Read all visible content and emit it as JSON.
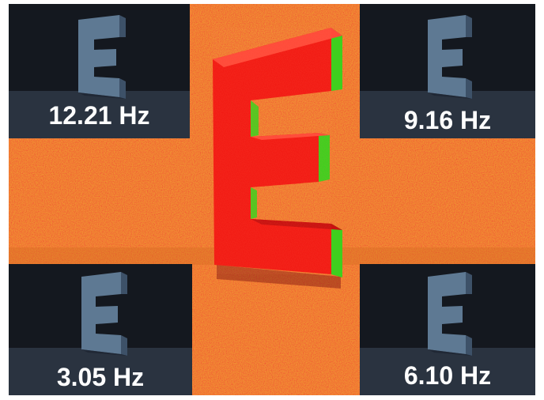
{
  "panels": {
    "top_left": {
      "frequency": "12.21 Hz"
    },
    "top_right": {
      "frequency": "9.16 Hz"
    },
    "bottom_left": {
      "frequency": "3.05 Hz"
    },
    "bottom_right": {
      "frequency": "6.10 Hz"
    }
  },
  "colors": {
    "noise_red": "#e8281e",
    "noise_orange": "#d4701a",
    "letter_red": "#ff1a1a",
    "letter_green": "#39d11c",
    "panel_dark": "#141820",
    "letter_blue": "#5a7590"
  }
}
